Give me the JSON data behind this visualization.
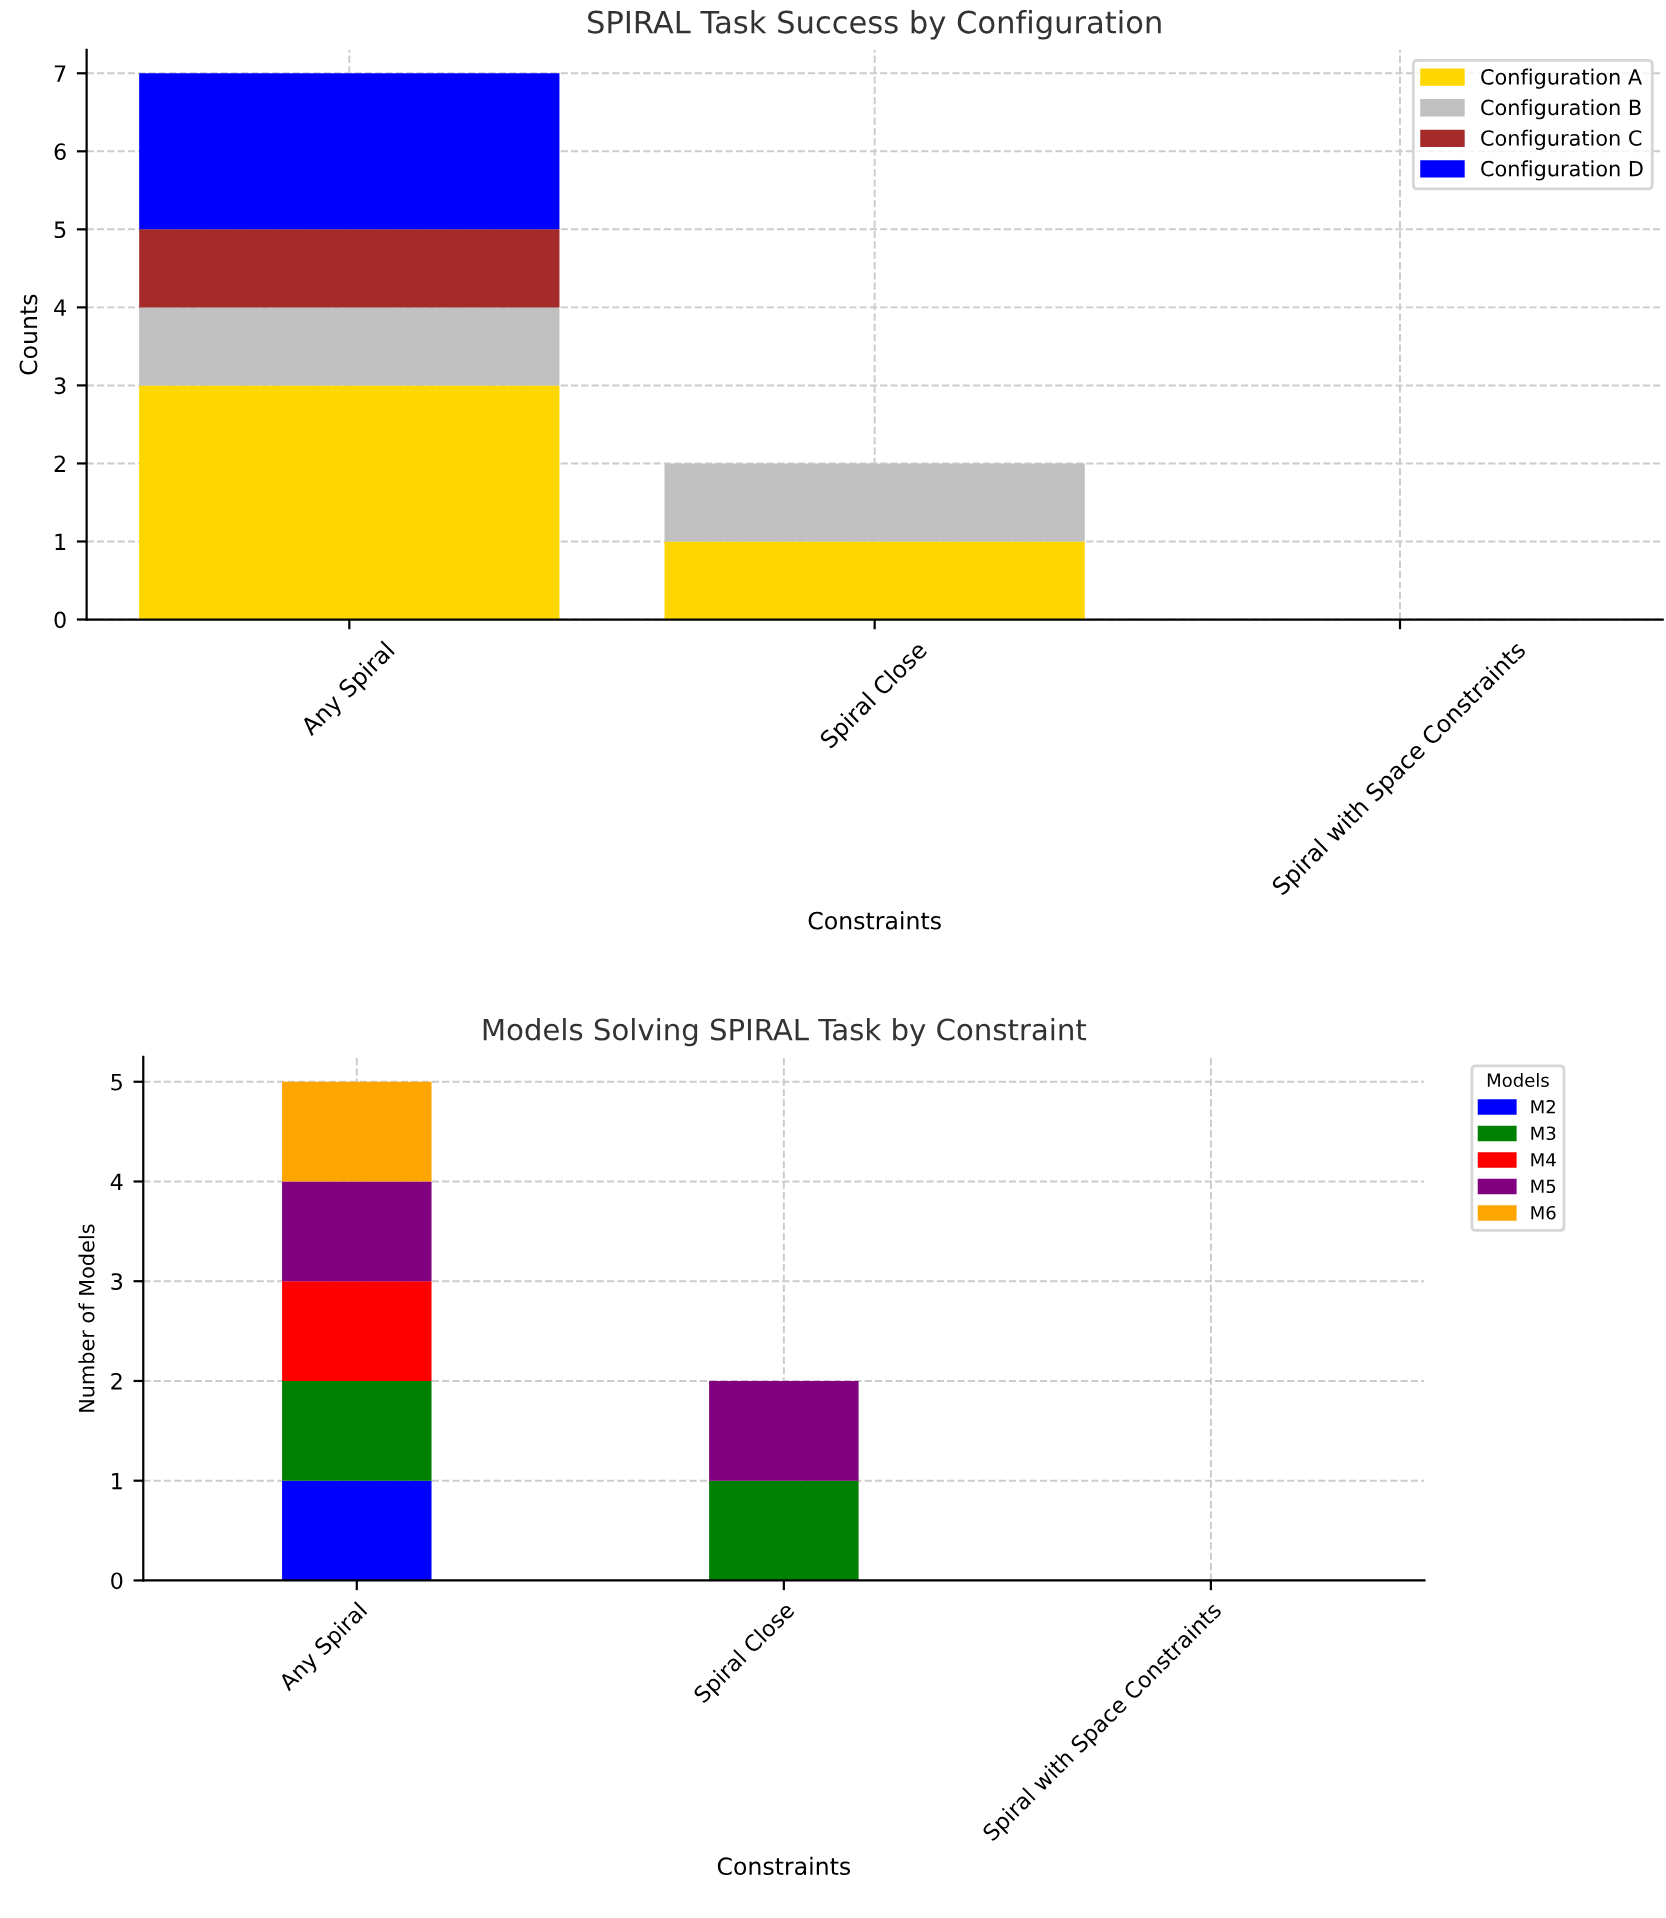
{
  "chart_data": [
    {
      "type": "bar",
      "title": "SPIRAL Task Success by Configuration",
      "xlabel": "Constraints",
      "ylabel": "Counts",
      "stacked": true,
      "categories": [
        "Any Spiral",
        "Spiral Close",
        "Spiral with Space Constraints"
      ],
      "series": [
        {
          "name": "Configuration A",
          "color": "#ffd700",
          "values": [
            3,
            1,
            0
          ]
        },
        {
          "name": "Configuration B",
          "color": "#c0c0c0",
          "values": [
            1,
            1,
            0
          ]
        },
        {
          "name": "Configuration C",
          "color": "#a52a2a",
          "values": [
            1,
            0,
            0
          ]
        },
        {
          "name": "Configuration D",
          "color": "#0000ff",
          "values": [
            2,
            0,
            0
          ]
        }
      ],
      "ylim": [
        0,
        7.3
      ],
      "yticks": [
        0,
        1,
        2,
        3,
        4,
        5,
        6,
        7
      ],
      "grid": true,
      "legend": "top right"
    },
    {
      "type": "bar",
      "title": "Models Solving SPIRAL Task by Constraint",
      "xlabel": "Constraints",
      "ylabel": "Number of Models",
      "legend_title": "Models",
      "stacked": true,
      "categories": [
        "Any Spiral",
        "Spiral Close",
        "Spiral with Space Constraints"
      ],
      "series": [
        {
          "name": "M2",
          "color": "#0000ff",
          "values": [
            1,
            0,
            0
          ]
        },
        {
          "name": "M3",
          "color": "#008000",
          "values": [
            1,
            1,
            0
          ]
        },
        {
          "name": "M4",
          "color": "#ff0000",
          "values": [
            1,
            0,
            0
          ]
        },
        {
          "name": "M5",
          "color": "#800080",
          "values": [
            1,
            1,
            0
          ]
        },
        {
          "name": "M6",
          "color": "#ffa500",
          "values": [
            1,
            0,
            0
          ]
        }
      ],
      "ylim": [
        0,
        5.25
      ],
      "yticks": [
        0,
        1,
        2,
        3,
        4,
        5
      ],
      "grid": true,
      "legend": "right"
    }
  ]
}
